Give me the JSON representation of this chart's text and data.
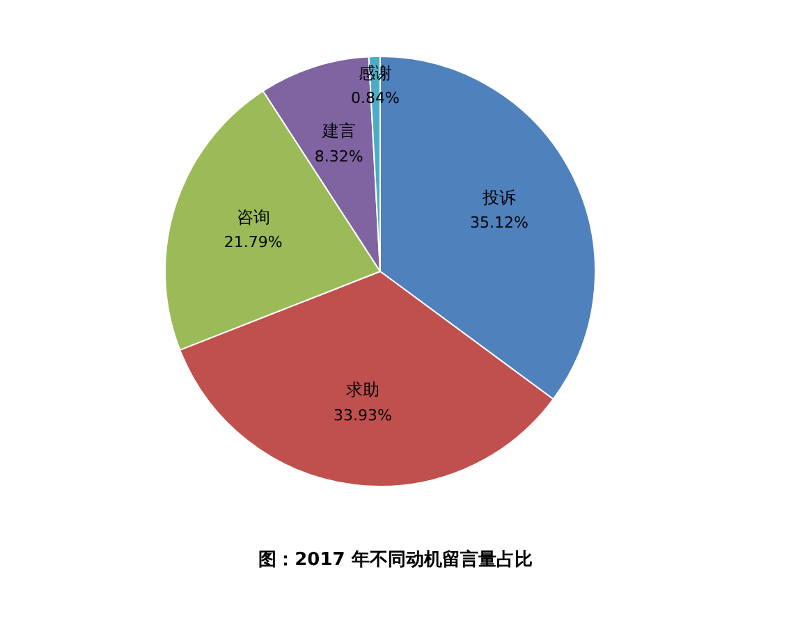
{
  "chart_data": {
    "type": "pie",
    "title": "图：2017 年不同动机留言量占比",
    "categories": [
      "投诉",
      "求助",
      "咨询",
      "建言",
      "感谢"
    ],
    "values": [
      35.12,
      33.93,
      21.79,
      8.32,
      0.84
    ],
    "colors": [
      "#4f81bd",
      "#c0504d",
      "#9bbb59",
      "#8064a2",
      "#4bacc6"
    ],
    "value_labels": [
      "35.12%",
      "33.93%",
      "21.79%",
      "8.32%",
      "0.84%"
    ],
    "legend": false
  }
}
